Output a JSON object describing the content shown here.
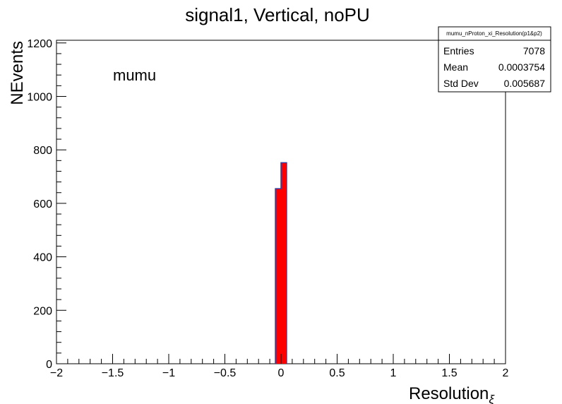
{
  "chart_data": {
    "type": "bar",
    "title": "signal1, Vertical, noPU",
    "xlabel": "Resolution",
    "xlabel_subscript": "ξ",
    "ylabel": "NEvents",
    "xlim": [
      -2,
      2
    ],
    "ylim": [
      0,
      1210
    ],
    "bin_width": 0.05,
    "x_ticks": [
      -2,
      -1.5,
      -1,
      -0.5,
      0,
      0.5,
      1,
      1.5,
      2
    ],
    "x_tick_labels": [
      "−2",
      "−1.5",
      "−1",
      "−0.5",
      "0",
      "0.5",
      "1",
      "1.5",
      "2"
    ],
    "y_ticks": [
      0,
      200,
      400,
      600,
      800,
      1000,
      1200
    ],
    "y_tick_labels": [
      "0",
      "200",
      "400",
      "600",
      "800",
      "1000",
      "1200"
    ],
    "bins": [
      {
        "low": -0.05,
        "high": 0.0,
        "value": 655
      },
      {
        "low": 0.0,
        "high": 0.05,
        "value": 752
      }
    ],
    "fill_color": "#ff0000",
    "line_color": "#3a3a9a",
    "annotation": "mumu",
    "stats": {
      "title": "mumu_nProton_xi_Resolution(p1&p2)",
      "rows": [
        {
          "label": "Entries",
          "value": "7078"
        },
        {
          "label": "Mean",
          "value": "0.0003754"
        },
        {
          "label": "Std Dev",
          "value": "0.005687"
        }
      ]
    },
    "grid": false,
    "legend": "top-right"
  }
}
